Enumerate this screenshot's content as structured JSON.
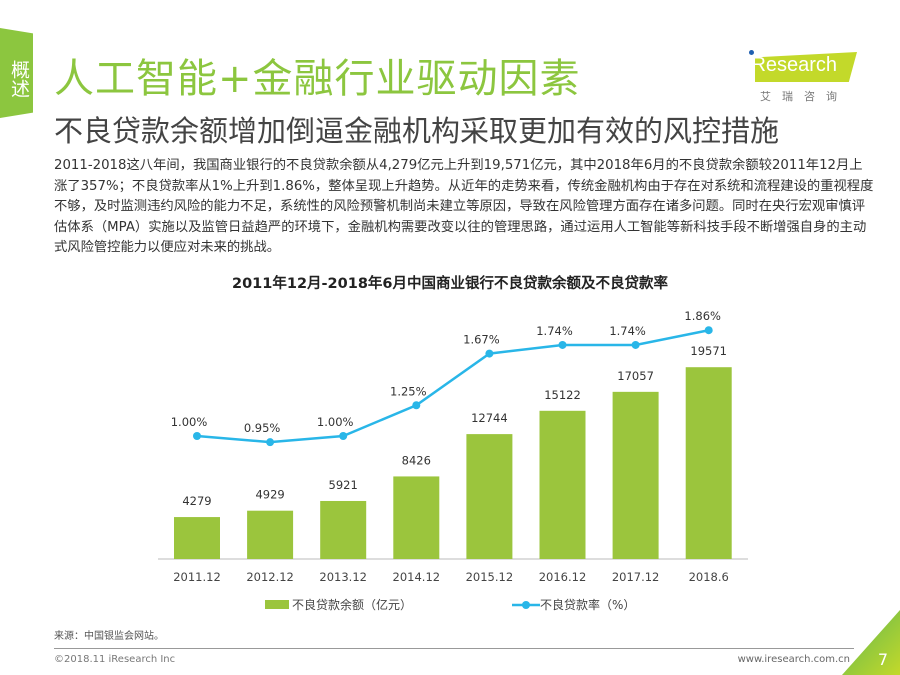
{
  "side_tab": "概述",
  "title": "人工智能+金融行业驱动因素",
  "subtitle": "不良贷款余额增加倒逼金融机构采取更加有效的风控措施",
  "logo": {
    "text": "iResearch",
    "cn": "艾瑞咨询"
  },
  "body": "2011-2018这八年间，我国商业银行的不良贷款余额从4,279亿元上升到19,571亿元，其中2018年6月的不良贷款余额较2011年12月上涨了357%；不良贷款率从1%上升到1.86%，整体呈现上升趋势。从近年的走势来看，传统金融机构由于存在对系统和流程建设的重视程度不够，及时监测违约风险的能力不足，系统性的风险预警机制尚未建立等原因，导致在风险管理方面存在诸多问题。同时在央行宏观审慎评估体系（MPA）实施以及监管日益趋严的环境下，金融机构需要改变以往的管理思路，通过运用人工智能等新科技手段不断增强自身的主动式风险管控能力以便应对未来的挑战。",
  "chart_data": {
    "type": "bar+line",
    "title": "2011年12月-2018年6月中国商业银行不良贷款余额及不良贷款率",
    "categories": [
      "2011.12",
      "2012.12",
      "2013.12",
      "2014.12",
      "2015.12",
      "2016.12",
      "2017.12",
      "2018.6"
    ],
    "series": [
      {
        "name": "不良贷款余额（亿元）",
        "type": "bar",
        "values": [
          4279,
          4929,
          5921,
          8426,
          12744,
          15122,
          17057,
          19571
        ],
        "labels": [
          "4279",
          "4929",
          "5921",
          "8426",
          "12744",
          "15122",
          "17057",
          "19571"
        ],
        "color": "#9bc53d"
      },
      {
        "name": "不良贷款率（%）",
        "type": "line",
        "values": [
          1.0,
          0.95,
          1.0,
          1.25,
          1.67,
          1.74,
          1.74,
          1.86
        ],
        "labels": [
          "1.00%",
          "0.95%",
          "1.00%",
          "1.25%",
          "1.67%",
          "1.74%",
          "1.74%",
          "1.86%"
        ],
        "color": "#29b6e8"
      }
    ],
    "legend": "bottom",
    "grid": false
  },
  "footer": {
    "source": "来源：中国银监会网站。",
    "copyright": "©2018.11 iResearch Inc",
    "site": "www.iresearch.com.cn",
    "page": "7"
  }
}
